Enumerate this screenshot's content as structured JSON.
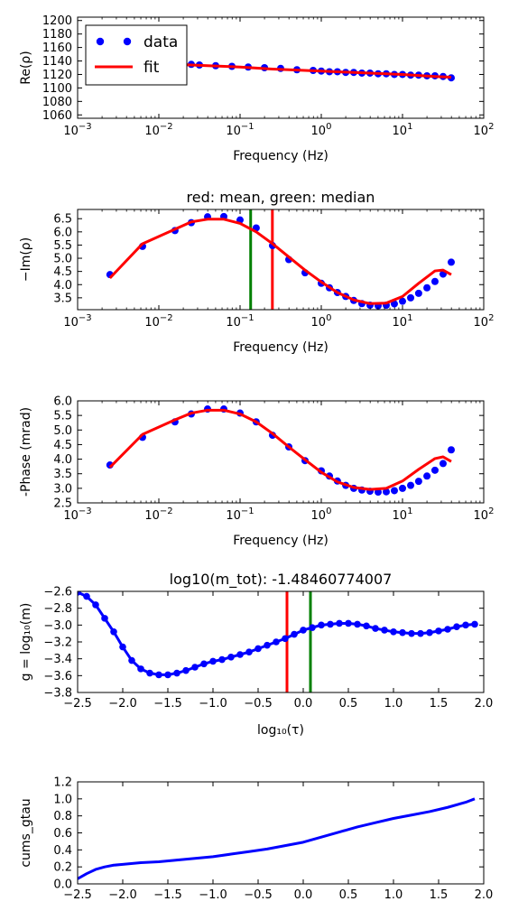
{
  "chart_data": [
    {
      "type": "scatter",
      "title": "",
      "xlabel": "Frequency (Hz)",
      "ylabel": "Re(ρ)",
      "xscale": "log",
      "xlim": [
        0.001,
        100
      ],
      "ylim": [
        1055,
        1205
      ],
      "xticks": [
        0.001,
        0.01,
        0.1,
        1,
        10,
        100
      ],
      "xtick_labels": [
        {
          "base": "10",
          "exp": "−3"
        },
        {
          "base": "10",
          "exp": "−2"
        },
        {
          "base": "10",
          "exp": "−1"
        },
        {
          "base": "10",
          "exp": "0"
        },
        {
          "base": "10",
          "exp": "1"
        },
        {
          "base": "10",
          "exp": "2"
        }
      ],
      "yticks": [
        1060,
        1080,
        1100,
        1120,
        1140,
        1160,
        1180,
        1200
      ],
      "ytick_labels": [
        "1060",
        "1080",
        "1100",
        "1120",
        "1140",
        "1160",
        "1180",
        "1200"
      ],
      "legend": {
        "position": "upper-left",
        "entries": [
          {
            "label": "data",
            "style": "dots",
            "color": "#0000ff"
          },
          {
            "label": "fit",
            "style": "line",
            "color": "#ff0000"
          }
        ]
      },
      "series": [
        {
          "name": "data",
          "style": "dots",
          "color": "#0000ff",
          "x": [
            0.0025,
            0.0063,
            0.0158,
            0.0251,
            0.0316,
            0.0501,
            0.0794,
            0.126,
            0.2,
            0.316,
            0.501,
            0.794,
            1.0,
            1.26,
            1.58,
            2.0,
            2.51,
            3.16,
            3.98,
            5.01,
            6.31,
            7.94,
            10.0,
            12.6,
            15.8,
            20.0,
            25.1,
            31.6,
            39.8
          ],
          "y": [
            1139,
            1137,
            1136,
            1135,
            1134,
            1133,
            1132,
            1131,
            1130,
            1129,
            1127,
            1126,
            1125,
            1124,
            1124,
            1123,
            1123,
            1122,
            1122,
            1121,
            1121,
            1120,
            1120,
            1119,
            1119,
            1118,
            1118,
            1117,
            1115
          ]
        },
        {
          "name": "fit",
          "style": "line",
          "color": "#ff0000",
          "x": [
            0.0025,
            0.0063,
            0.0158,
            0.0398,
            0.1,
            0.251,
            0.631,
            1.58,
            3.98,
            10.0,
            25.1,
            39.8
          ],
          "y": [
            1139,
            1137,
            1135,
            1133,
            1131,
            1128,
            1126,
            1124,
            1122,
            1120,
            1117,
            1116
          ]
        }
      ],
      "vlines": []
    },
    {
      "type": "scatter",
      "title": "red: mean, green: median",
      "xlabel": "Frequency (Hz)",
      "ylabel": "−Im(ρ)",
      "xscale": "log",
      "xlim": [
        0.001,
        100
      ],
      "ylim": [
        3.05,
        6.85
      ],
      "xticks": [
        0.001,
        0.01,
        0.1,
        1,
        10,
        100
      ],
      "xtick_labels": [
        {
          "base": "10",
          "exp": "−3"
        },
        {
          "base": "10",
          "exp": "−2"
        },
        {
          "base": "10",
          "exp": "−1"
        },
        {
          "base": "10",
          "exp": "0"
        },
        {
          "base": "10",
          "exp": "1"
        },
        {
          "base": "10",
          "exp": "2"
        }
      ],
      "yticks": [
        3.5,
        4.0,
        4.5,
        5.0,
        5.5,
        6.0,
        6.5
      ],
      "ytick_labels": [
        "3.5",
        "4.0",
        "4.5",
        "5.0",
        "5.5",
        "6.0",
        "6.5"
      ],
      "legend": null,
      "series": [
        {
          "name": "",
          "style": "dots",
          "color": "#0000ff",
          "x": [
            0.0025,
            0.0063,
            0.0158,
            0.0251,
            0.0398,
            0.0631,
            0.1,
            0.158,
            0.251,
            0.398,
            0.631,
            1.0,
            1.26,
            1.58,
            2.0,
            2.51,
            3.16,
            3.98,
            5.01,
            6.31,
            7.94,
            10.0,
            12.6,
            15.8,
            20.0,
            25.1,
            31.6,
            39.8
          ],
          "y": [
            4.38,
            5.45,
            6.05,
            6.35,
            6.57,
            6.58,
            6.45,
            6.15,
            5.48,
            4.95,
            4.45,
            4.05,
            3.88,
            3.7,
            3.55,
            3.4,
            3.28,
            3.22,
            3.2,
            3.22,
            3.27,
            3.37,
            3.5,
            3.67,
            3.88,
            4.12,
            4.4,
            4.85
          ]
        },
        {
          "name": "",
          "style": "line",
          "color": "#ff0000",
          "x": [
            0.0025,
            0.0063,
            0.0158,
            0.0251,
            0.0398,
            0.0631,
            0.1,
            0.158,
            0.251,
            0.398,
            0.631,
            1.0,
            1.58,
            2.51,
            3.98,
            6.31,
            10.0,
            15.8,
            25.1,
            31.6,
            39.8
          ],
          "y": [
            4.25,
            5.55,
            6.1,
            6.38,
            6.48,
            6.48,
            6.32,
            6.0,
            5.55,
            5.05,
            4.55,
            4.1,
            3.7,
            3.42,
            3.28,
            3.3,
            3.55,
            4.05,
            4.52,
            4.55,
            4.38
          ]
        }
      ],
      "vlines": [
        {
          "x": 0.135,
          "color": "#008000"
        },
        {
          "x": 0.25,
          "color": "#ff0000"
        }
      ]
    },
    {
      "type": "scatter",
      "title": "",
      "xlabel": "Frequency (Hz)",
      "ylabel": "-Phase (mrad)",
      "xscale": "log",
      "xlim": [
        0.001,
        100
      ],
      "ylim": [
        2.5,
        6.0
      ],
      "xticks": [
        0.001,
        0.01,
        0.1,
        1,
        10,
        100
      ],
      "xtick_labels": [
        {
          "base": "10",
          "exp": "−3"
        },
        {
          "base": "10",
          "exp": "−2"
        },
        {
          "base": "10",
          "exp": "−1"
        },
        {
          "base": "10",
          "exp": "0"
        },
        {
          "base": "10",
          "exp": "1"
        },
        {
          "base": "10",
          "exp": "2"
        }
      ],
      "yticks": [
        2.5,
        3.0,
        3.5,
        4.0,
        4.5,
        5.0,
        5.5,
        6.0
      ],
      "ytick_labels": [
        "2.5",
        "3.0",
        "3.5",
        "4.0",
        "4.5",
        "5.0",
        "5.5",
        "6.0"
      ],
      "legend": null,
      "series": [
        {
          "name": "",
          "style": "dots",
          "color": "#0000ff",
          "x": [
            0.0025,
            0.0063,
            0.0158,
            0.0251,
            0.0398,
            0.0631,
            0.1,
            0.158,
            0.251,
            0.398,
            0.631,
            1.0,
            1.26,
            1.58,
            2.0,
            2.51,
            3.16,
            3.98,
            5.01,
            6.31,
            7.94,
            10.0,
            12.6,
            15.8,
            20.0,
            25.1,
            31.6,
            39.8
          ],
          "y": [
            3.8,
            4.75,
            5.28,
            5.55,
            5.72,
            5.72,
            5.58,
            5.28,
            4.82,
            4.42,
            3.95,
            3.6,
            3.42,
            3.25,
            3.1,
            3.0,
            2.94,
            2.9,
            2.87,
            2.88,
            2.92,
            3.0,
            3.1,
            3.24,
            3.42,
            3.62,
            3.85,
            4.32
          ]
        },
        {
          "name": "",
          "style": "line",
          "color": "#ff0000",
          "x": [
            0.0025,
            0.0063,
            0.0158,
            0.0251,
            0.0398,
            0.0631,
            0.1,
            0.158,
            0.251,
            0.398,
            0.631,
            1.0,
            1.58,
            2.51,
            3.98,
            6.31,
            10.0,
            15.8,
            25.1,
            31.6,
            39.8
          ],
          "y": [
            3.72,
            4.85,
            5.35,
            5.58,
            5.68,
            5.68,
            5.55,
            5.28,
            4.88,
            4.42,
            3.98,
            3.55,
            3.22,
            3.03,
            2.96,
            3.0,
            3.25,
            3.65,
            4.02,
            4.08,
            3.92
          ]
        }
      ],
      "vlines": []
    },
    {
      "type": "line",
      "title": "log10(m_tot): -1.48460774007",
      "xlabel": "log₁₀(τ)",
      "ylabel": "g = log₁₀(m)",
      "xscale": "linear",
      "xlim": [
        -2.5,
        2.0
      ],
      "ylim": [
        -3.8,
        -2.6
      ],
      "xticks": [
        -2.5,
        -2.0,
        -1.5,
        -1.0,
        -0.5,
        0.0,
        0.5,
        1.0,
        1.5,
        2.0
      ],
      "xtick_labels": [
        "−2.5",
        "−2.0",
        "−1.5",
        "−1.0",
        "−0.5",
        "0.0",
        "0.5",
        "1.0",
        "1.5",
        "2.0"
      ],
      "yticks": [
        -3.8,
        -3.6,
        -3.4,
        -3.2,
        -3.0,
        -2.8,
        -2.6
      ],
      "ytick_labels": [
        "−3.8",
        "−3.6",
        "−3.4",
        "−3.2",
        "−3.0",
        "−2.8",
        "−2.6"
      ],
      "legend": null,
      "series": [
        {
          "name": "",
          "style": "line+dots",
          "color": "#0000ff",
          "x": [
            -2.5,
            -2.4,
            -2.3,
            -2.2,
            -2.1,
            -2.0,
            -1.9,
            -1.8,
            -1.7,
            -1.6,
            -1.5,
            -1.4,
            -1.3,
            -1.2,
            -1.1,
            -1.0,
            -0.9,
            -0.8,
            -0.7,
            -0.6,
            -0.5,
            -0.4,
            -0.3,
            -0.2,
            -0.1,
            0.0,
            0.1,
            0.2,
            0.3,
            0.4,
            0.5,
            0.6,
            0.7,
            0.8,
            0.9,
            1.0,
            1.1,
            1.2,
            1.3,
            1.4,
            1.5,
            1.6,
            1.7,
            1.8,
            1.9
          ],
          "y": [
            -2.61,
            -2.66,
            -2.76,
            -2.92,
            -3.08,
            -3.26,
            -3.42,
            -3.52,
            -3.57,
            -3.59,
            -3.59,
            -3.57,
            -3.54,
            -3.5,
            -3.46,
            -3.43,
            -3.41,
            -3.38,
            -3.35,
            -3.32,
            -3.28,
            -3.24,
            -3.2,
            -3.16,
            -3.11,
            -3.06,
            -3.03,
            -3.0,
            -2.99,
            -2.98,
            -2.98,
            -2.99,
            -3.01,
            -3.04,
            -3.06,
            -3.08,
            -3.09,
            -3.1,
            -3.1,
            -3.09,
            -3.07,
            -3.05,
            -3.02,
            -3.0,
            -2.99
          ]
        }
      ],
      "vlines": [
        {
          "x": -0.18,
          "color": "#ff0000"
        },
        {
          "x": 0.08,
          "color": "#008000"
        }
      ]
    },
    {
      "type": "line",
      "title": "",
      "xlabel": "",
      "ylabel": "cums_gtau",
      "xscale": "linear",
      "xlim": [
        -2.5,
        2.0
      ],
      "ylim": [
        0.0,
        1.2
      ],
      "xticks": [
        -2.5,
        -2.0,
        -1.5,
        -1.0,
        -0.5,
        0.0,
        0.5,
        1.0,
        1.5,
        2.0
      ],
      "xtick_labels": [
        "−2.5",
        "−2.0",
        "−1.5",
        "−1.0",
        "−0.5",
        "0.0",
        "0.5",
        "1.0",
        "1.5",
        "2.0"
      ],
      "yticks": [
        0.0,
        0.2,
        0.4,
        0.6,
        0.8,
        1.0,
        1.2
      ],
      "ytick_labels": [
        "0.0",
        "0.2",
        "0.4",
        "0.6",
        "0.8",
        "1.0",
        "1.2"
      ],
      "legend": null,
      "series": [
        {
          "name": "",
          "style": "line",
          "color": "#0000ff",
          "x": [
            -2.5,
            -2.4,
            -2.3,
            -2.2,
            -2.1,
            -2.0,
            -1.8,
            -1.6,
            -1.4,
            -1.2,
            -1.0,
            -0.8,
            -0.6,
            -0.4,
            -0.2,
            0.0,
            0.2,
            0.4,
            0.6,
            0.8,
            1.0,
            1.2,
            1.4,
            1.6,
            1.8,
            1.9
          ],
          "y": [
            0.06,
            0.12,
            0.17,
            0.2,
            0.22,
            0.23,
            0.25,
            0.26,
            0.28,
            0.3,
            0.32,
            0.35,
            0.38,
            0.41,
            0.45,
            0.49,
            0.55,
            0.61,
            0.67,
            0.72,
            0.77,
            0.81,
            0.85,
            0.9,
            0.96,
            1.0
          ]
        }
      ],
      "vlines": []
    }
  ]
}
